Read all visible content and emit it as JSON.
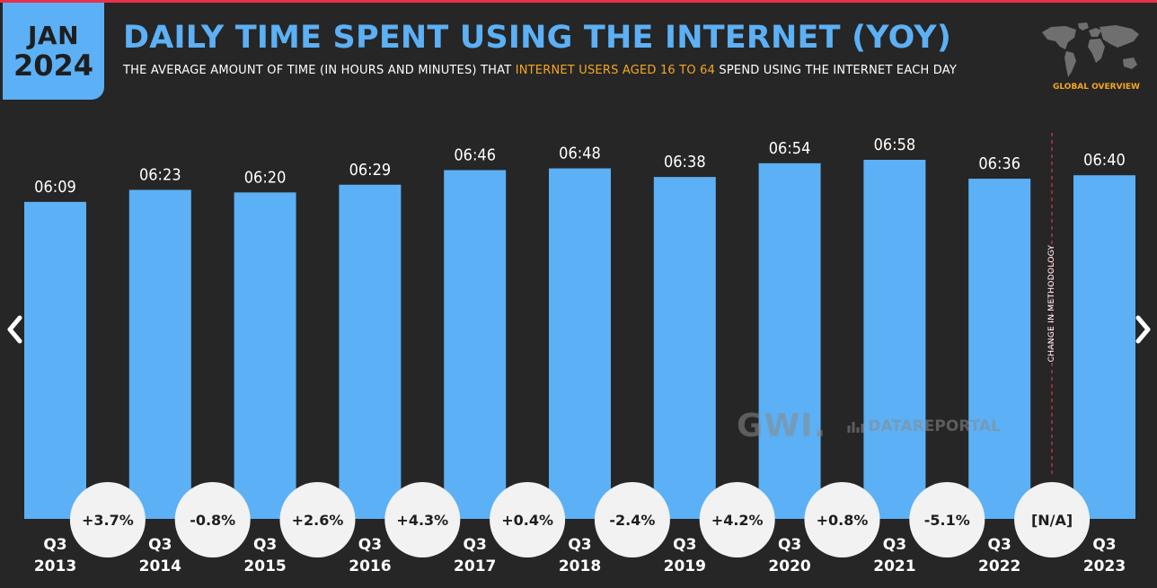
{
  "badge": {
    "month": "JAN",
    "year": "2024"
  },
  "title": "DAILY TIME SPENT USING THE INTERNET (YOY)",
  "subtitle": {
    "before": "THE AVERAGE AMOUNT OF TIME (IN HOURS AND MINUTES) THAT ",
    "highlight": "INTERNET USERS AGED 16 TO 64",
    "after": " SPEND USING THE INTERNET EACH DAY"
  },
  "section_label": "GLOBAL OVERVIEW",
  "methodology_note": "CHANGE IN METHODOLOGY",
  "watermark": {
    "gwi": "GWI.",
    "datareportal": "DATAREPORTAL"
  },
  "icons": {
    "map": "world-map-icon",
    "prev": "chevron-left-icon",
    "next": "chevron-right-icon",
    "datareportal": "datareportal-logo-icon"
  },
  "colors": {
    "accent": "#5cb0f5",
    "highlight": "#f5a623",
    "background": "#262626",
    "top_stripe": "#e8304a",
    "bubble": "#f2f2f2"
  },
  "chart_data": {
    "type": "bar",
    "categories": [
      [
        "Q3",
        "2013"
      ],
      [
        "Q3",
        "2014"
      ],
      [
        "Q3",
        "2015"
      ],
      [
        "Q3",
        "2016"
      ],
      [
        "Q3",
        "2017"
      ],
      [
        "Q3",
        "2018"
      ],
      [
        "Q3",
        "2019"
      ],
      [
        "Q3",
        "2020"
      ],
      [
        "Q3",
        "2021"
      ],
      [
        "Q3",
        "2022"
      ],
      [
        "Q3",
        "2023"
      ]
    ],
    "values": [
      369,
      383,
      380,
      389,
      406,
      408,
      398,
      414,
      418,
      396,
      400
    ],
    "value_labels": [
      "06:09",
      "06:23",
      "06:20",
      "06:29",
      "06:46",
      "06:48",
      "06:38",
      "06:54",
      "06:58",
      "06:36",
      "06:40"
    ],
    "changes": [
      "+3.7%",
      "-0.8%",
      "+2.6%",
      "+4.3%",
      "+0.4%",
      "-2.4%",
      "+4.2%",
      "+0.8%",
      "-5.1%",
      "[N/A]"
    ],
    "unit": "minutes per day",
    "ylim": [
      0,
      418
    ],
    "bar_color": "#5cb0f5"
  }
}
